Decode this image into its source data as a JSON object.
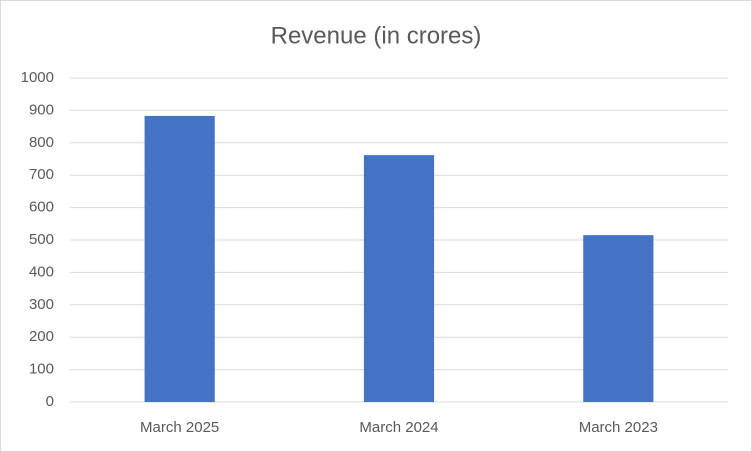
{
  "chart_data": {
    "type": "bar",
    "title": "Revenue (in crores)",
    "categories": [
      "March 2025",
      "March 2024",
      "March 2023"
    ],
    "values": [
      883,
      762,
      515
    ],
    "color": "#4472c4",
    "ylim": [
      0,
      1000
    ],
    "yticks": [
      0,
      100,
      200,
      300,
      400,
      500,
      600,
      700,
      800,
      900,
      1000
    ],
    "grid": true
  }
}
